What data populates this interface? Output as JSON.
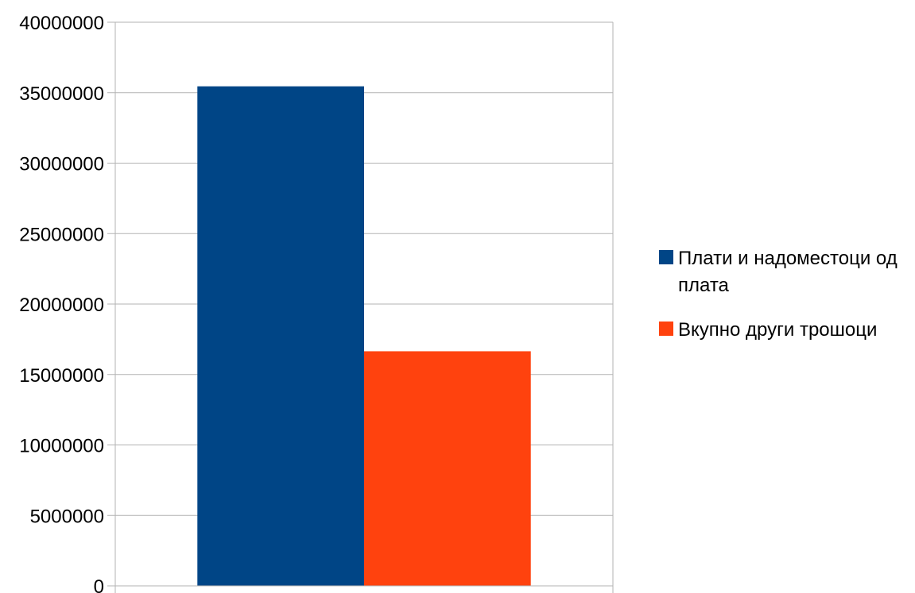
{
  "chart_data": {
    "type": "bar",
    "categories": [
      ""
    ],
    "series": [
      {
        "name": "Плати и надоместоци од плата",
        "values": [
          35450000
        ],
        "color": "#004586"
      },
      {
        "name": "Вкупно други трошоци",
        "values": [
          16650000
        ],
        "color": "#ff420e"
      }
    ],
    "ylim": [
      0,
      40000000
    ],
    "yticks": [
      0,
      5000000,
      10000000,
      15000000,
      20000000,
      25000000,
      30000000,
      35000000,
      40000000
    ],
    "grid": true,
    "legend_position": "right",
    "legend": [
      {
        "lines": [
          "Плати и надоместоци од",
          "плата"
        ],
        "color": "#004586"
      },
      {
        "lines": [
          "Вкупно други трошоци"
        ],
        "color": "#ff420e"
      }
    ]
  }
}
